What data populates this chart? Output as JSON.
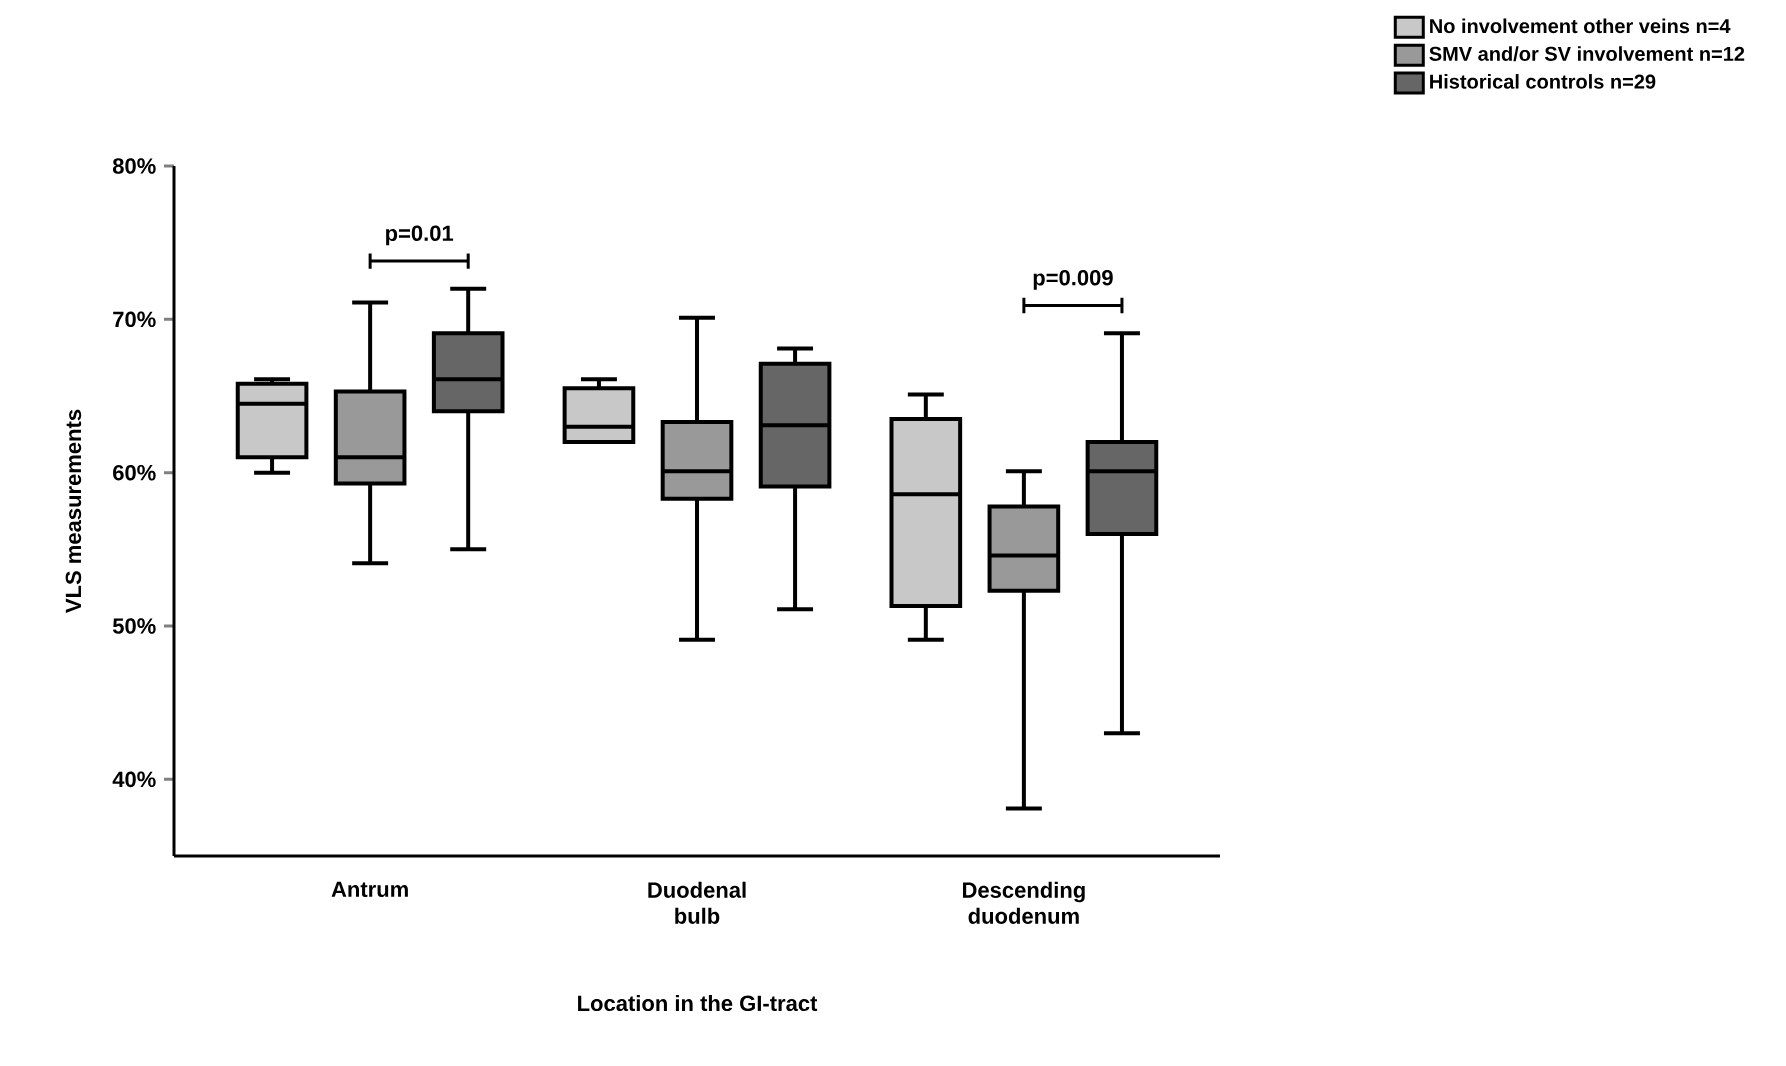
{
  "chart_data": {
    "type": "box",
    "xlabel": "Location in the GI-tract",
    "ylabel": "VLS measurements",
    "categories": [
      "Antrum",
      "Duodenal bulb",
      "Descending duodenum"
    ],
    "ylim": [
      35,
      80
    ],
    "yticks": [
      {
        "value": 40,
        "label": "40%"
      },
      {
        "value": 50,
        "label": "50%"
      },
      {
        "value": 60,
        "label": "60%"
      },
      {
        "value": 70,
        "label": "70%"
      },
      {
        "value": 80,
        "label": "80%"
      }
    ],
    "legend": "top right",
    "grid": false,
    "series": [
      {
        "name": "No involvement other veins n=4",
        "color": "#c8c8c8",
        "boxes": [
          {
            "low": 60.0,
            "q1": 61.0,
            "median": 64.5,
            "q3": 65.8,
            "high": 66.1
          },
          {
            "low": 62.0,
            "q1": 62.0,
            "median": 63.0,
            "q3": 65.5,
            "high": 66.1
          },
          {
            "low": 49.1,
            "q1": 51.3,
            "median": 58.6,
            "q3": 63.5,
            "high": 65.1
          }
        ]
      },
      {
        "name": "SMV and/or SV involvement n=12",
        "color": "#999999",
        "boxes": [
          {
            "low": 54.1,
            "q1": 59.3,
            "median": 61.0,
            "q3": 65.3,
            "high": 71.1
          },
          {
            "low": 49.1,
            "q1": 58.3,
            "median": 60.1,
            "q3": 63.3,
            "high": 70.1
          },
          {
            "low": 38.1,
            "q1": 52.3,
            "median": 54.6,
            "q3": 57.8,
            "high": 60.1
          }
        ]
      },
      {
        "name": "Historical controls n=29",
        "color": "#666666",
        "boxes": [
          {
            "low": 55.0,
            "q1": 64.0,
            "median": 66.1,
            "q3": 69.1,
            "high": 72.0
          },
          {
            "low": 51.1,
            "q1": 59.1,
            "median": 63.1,
            "q3": 67.1,
            "high": 68.1
          },
          {
            "low": 43.0,
            "q1": 56.0,
            "median": 60.1,
            "q3": 62.0,
            "high": 69.1
          }
        ]
      }
    ],
    "annotations": [
      "p=0.01",
      "p=0.009"
    ]
  }
}
